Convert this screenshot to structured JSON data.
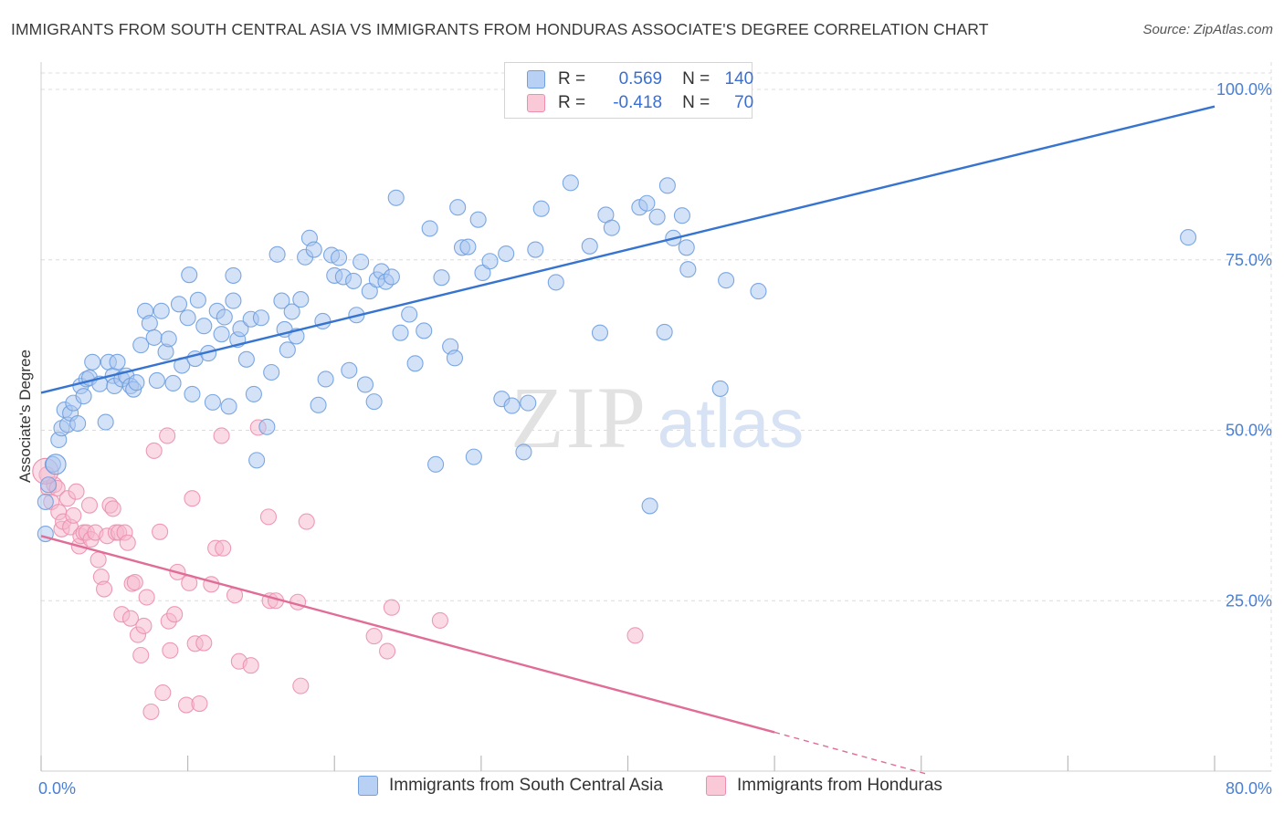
{
  "title": "IMMIGRANTS FROM SOUTH CENTRAL ASIA VS IMMIGRANTS FROM HONDURAS ASSOCIATE'S DEGREE CORRELATION CHART",
  "source": "Source: ZipAtlas.com",
  "watermark": {
    "zip": "ZIP",
    "atlas": "atlas"
  },
  "legend_top": [
    {
      "r_label": "R =",
      "r_value": "0.569",
      "n_label": "N =",
      "n_value": "140"
    },
    {
      "r_label": "R =",
      "r_value": "-0.418",
      "n_label": "N =",
      "n_value": "70"
    }
  ],
  "colors": {
    "blue_fill": "#a9c6f0",
    "blue_stroke": "#6e9fe0",
    "blue_line": "#3674d0",
    "pink_fill": "#f6b8cb",
    "pink_stroke": "#ec8fae",
    "pink_line": "#e06c97",
    "tick_label": "#4a7fd4",
    "grid": "#dcdcdc"
  },
  "chart_data": {
    "type": "scatter",
    "xlabel": "",
    "ylabel": "Associate's Degree",
    "xlim": [
      0,
      80
    ],
    "ylim": [
      0,
      100
    ],
    "x_tick_labels": [
      "0.0%",
      "80.0%"
    ],
    "y_ticks": [
      25,
      50,
      75,
      100
    ],
    "y_tick_labels": [
      "25.0%",
      "50.0%",
      "75.0%",
      "100.0%"
    ],
    "grid": true,
    "legend_position": "bottom",
    "series": [
      {
        "name": "Immigrants from South Central Asia",
        "color": "#a9c6f0",
        "trend": {
          "x": [
            0,
            80
          ],
          "y": [
            55.5,
            97.5
          ]
        },
        "points": [
          [
            0.3,
            34.8
          ],
          [
            0.3,
            39.5
          ],
          [
            0.5,
            42
          ],
          [
            0.8,
            45
          ],
          [
            1.2,
            48.6
          ],
          [
            1.4,
            50.3
          ],
          [
            1.6,
            53
          ],
          [
            1.8,
            50.8
          ],
          [
            2.0,
            52.5
          ],
          [
            2.2,
            54
          ],
          [
            2.5,
            51
          ],
          [
            2.7,
            56.5
          ],
          [
            2.9,
            55
          ],
          [
            3.1,
            57.5
          ],
          [
            3.3,
            57.7
          ],
          [
            3.5,
            60
          ],
          [
            4.0,
            56.8
          ],
          [
            4.4,
            51.2
          ],
          [
            4.6,
            60
          ],
          [
            4.9,
            58
          ],
          [
            5.0,
            56.5
          ],
          [
            5.2,
            60
          ],
          [
            5.5,
            57.5
          ],
          [
            5.8,
            58
          ],
          [
            6.1,
            56.5
          ],
          [
            6.3,
            56
          ],
          [
            6.5,
            57
          ],
          [
            6.8,
            62.5
          ],
          [
            7.1,
            67.5
          ],
          [
            7.4,
            65.7
          ],
          [
            7.7,
            63.6
          ],
          [
            7.9,
            57.3
          ],
          [
            8.2,
            67.5
          ],
          [
            8.5,
            61.5
          ],
          [
            8.7,
            63.4
          ],
          [
            9.0,
            56.9
          ],
          [
            9.4,
            68.5
          ],
          [
            9.6,
            59.5
          ],
          [
            10.0,
            66.5
          ],
          [
            10.3,
            55.3
          ],
          [
            10.1,
            72.8
          ],
          [
            10.5,
            60.5
          ],
          [
            10.7,
            69.1
          ],
          [
            11.1,
            65.3
          ],
          [
            11.4,
            61.3
          ],
          [
            11.7,
            54.1
          ],
          [
            12.0,
            67.5
          ],
          [
            12.3,
            64.1
          ],
          [
            12.5,
            66.6
          ],
          [
            12.8,
            53.5
          ],
          [
            13.1,
            69
          ],
          [
            13.1,
            72.7
          ],
          [
            13.4,
            63.3
          ],
          [
            13.6,
            64.9
          ],
          [
            14.0,
            60.4
          ],
          [
            14.3,
            66.3
          ],
          [
            14.5,
            55.3
          ],
          [
            14.7,
            45.6
          ],
          [
            15.0,
            66.5
          ],
          [
            15.4,
            50.5
          ],
          [
            15.7,
            58.5
          ],
          [
            16.1,
            75.8
          ],
          [
            16.4,
            69
          ],
          [
            16.6,
            64.8
          ],
          [
            16.8,
            61.8
          ],
          [
            17.1,
            67.4
          ],
          [
            17.4,
            63.8
          ],
          [
            17.7,
            69.2
          ],
          [
            18.0,
            75.4
          ],
          [
            18.3,
            78.2
          ],
          [
            18.6,
            76.5
          ],
          [
            18.9,
            53.7
          ],
          [
            19.2,
            66
          ],
          [
            19.4,
            57.5
          ],
          [
            19.8,
            75.7
          ],
          [
            20.0,
            72.7
          ],
          [
            20.3,
            75.3
          ],
          [
            20.6,
            72.5
          ],
          [
            21.0,
            58.8
          ],
          [
            21.3,
            71.9
          ],
          [
            21.5,
            66.9
          ],
          [
            21.8,
            74.7
          ],
          [
            22.1,
            56.7
          ],
          [
            22.4,
            70.4
          ],
          [
            22.7,
            54.2
          ],
          [
            22.9,
            72.1
          ],
          [
            23.2,
            73.3
          ],
          [
            23.5,
            71.8
          ],
          [
            23.9,
            72.5
          ],
          [
            24.2,
            84.1
          ],
          [
            24.5,
            64.3
          ],
          [
            25.1,
            67
          ],
          [
            25.5,
            59.8
          ],
          [
            26.1,
            64.6
          ],
          [
            26.5,
            79.6
          ],
          [
            26.9,
            45
          ],
          [
            27.3,
            72.4
          ],
          [
            27.9,
            62.3
          ],
          [
            28.2,
            60.6
          ],
          [
            28.4,
            82.7
          ],
          [
            28.7,
            76.8
          ],
          [
            29.1,
            76.9
          ],
          [
            29.5,
            46.1
          ],
          [
            29.8,
            80.9
          ],
          [
            30.1,
            73.1
          ],
          [
            30.6,
            74.8
          ],
          [
            31.4,
            54.6
          ],
          [
            31.7,
            75.9
          ],
          [
            32.1,
            53.6
          ],
          [
            32.9,
            46.8
          ],
          [
            33.2,
            54
          ],
          [
            33.7,
            76.5
          ],
          [
            34.1,
            82.5
          ],
          [
            35.1,
            71.7
          ],
          [
            36.1,
            86.3
          ],
          [
            37.4,
            77
          ],
          [
            38.1,
            64.3
          ],
          [
            38.5,
            81.6
          ],
          [
            38.9,
            79.7
          ],
          [
            40.8,
            82.7
          ],
          [
            41.3,
            83.3
          ],
          [
            41.5,
            38.9
          ],
          [
            42,
            81.3
          ],
          [
            42.5,
            64.4
          ],
          [
            42.7,
            85.9
          ],
          [
            43.1,
            78.2
          ],
          [
            43.7,
            81.5
          ],
          [
            44.0,
            76.8
          ],
          [
            44.1,
            73.6
          ],
          [
            46.3,
            56.1
          ],
          [
            46.7,
            72
          ],
          [
            48.9,
            70.4
          ],
          [
            78.2,
            78.3
          ]
        ]
      },
      {
        "name": "Immigrants from Honduras",
        "color": "#f6b8cb",
        "trend": {
          "x": [
            0,
            50
          ],
          "y": [
            34.5,
            5.7
          ]
        },
        "trend_dashed": {
          "x": [
            50,
            60.5
          ],
          "y": [
            5.7,
            -0.5
          ]
        },
        "points": [
          [
            0.4,
            43.5
          ],
          [
            0.5,
            41.5
          ],
          [
            0.7,
            39.5
          ],
          [
            0.9,
            42
          ],
          [
            1.1,
            41.5
          ],
          [
            1.2,
            38
          ],
          [
            1.4,
            35.5
          ],
          [
            1.5,
            36.6
          ],
          [
            1.8,
            40
          ],
          [
            2.0,
            35.8
          ],
          [
            2.2,
            37.5
          ],
          [
            2.4,
            41
          ],
          [
            2.6,
            33
          ],
          [
            2.7,
            34.5
          ],
          [
            2.9,
            35
          ],
          [
            3.1,
            35
          ],
          [
            3.3,
            39
          ],
          [
            3.4,
            34
          ],
          [
            3.7,
            35
          ],
          [
            3.9,
            31
          ],
          [
            4.1,
            28.5
          ],
          [
            4.3,
            26.7
          ],
          [
            4.5,
            34.5
          ],
          [
            4.7,
            39
          ],
          [
            4.9,
            38.5
          ],
          [
            5.1,
            35
          ],
          [
            5.3,
            35
          ],
          [
            5.5,
            23
          ],
          [
            5.7,
            35
          ],
          [
            5.9,
            33.5
          ],
          [
            6.1,
            22.4
          ],
          [
            6.2,
            27.5
          ],
          [
            6.4,
            27.7
          ],
          [
            6.6,
            20
          ],
          [
            6.8,
            17
          ],
          [
            7.0,
            21.3
          ],
          [
            7.2,
            25.5
          ],
          [
            7.5,
            8.7
          ],
          [
            7.7,
            47
          ],
          [
            8.1,
            35.1
          ],
          [
            8.3,
            11.5
          ],
          [
            8.6,
            49.2
          ],
          [
            8.7,
            22
          ],
          [
            8.8,
            17.7
          ],
          [
            9.1,
            23
          ],
          [
            9.3,
            29.2
          ],
          [
            9.9,
            9.7
          ],
          [
            10.1,
            27.6
          ],
          [
            10.3,
            40
          ],
          [
            10.5,
            18.7
          ],
          [
            10.8,
            9.9
          ],
          [
            11.1,
            18.8
          ],
          [
            11.6,
            27.4
          ],
          [
            11.9,
            32.7
          ],
          [
            12.3,
            49.2
          ],
          [
            12.4,
            32.7
          ],
          [
            13.2,
            25.8
          ],
          [
            13.5,
            16.1
          ],
          [
            14.3,
            15.5
          ],
          [
            14.8,
            50.4
          ],
          [
            15.5,
            37.3
          ],
          [
            15.6,
            25
          ],
          [
            16.0,
            25
          ],
          [
            17.5,
            24.8
          ],
          [
            17.7,
            12.5
          ],
          [
            18.1,
            36.6
          ],
          [
            22.7,
            19.8
          ],
          [
            23.9,
            24
          ],
          [
            23.6,
            17.6
          ],
          [
            27.2,
            22.1
          ],
          [
            40.5,
            19.9
          ]
        ]
      }
    ]
  }
}
